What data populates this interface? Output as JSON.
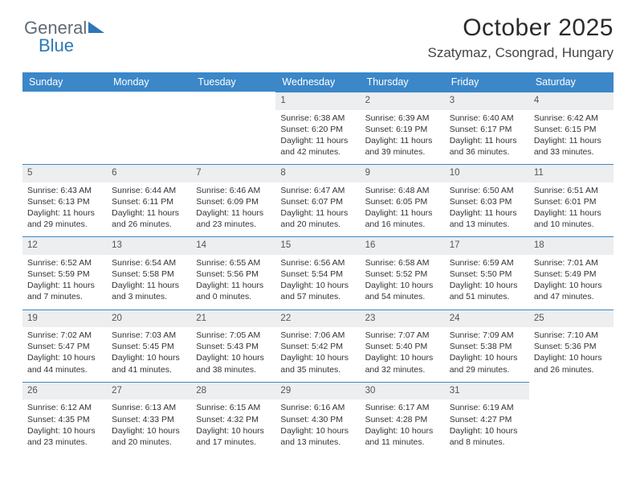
{
  "logo": {
    "part1": "General",
    "part2": "Blue"
  },
  "title": "October 2025",
  "location": "Szatymaz, Csongrad, Hungary",
  "colors": {
    "header_bg": "#3b87c8",
    "header_text": "#ffffff",
    "daynum_bg": "#eceef0",
    "daynum_border": "#3b87c8",
    "body_text": "#333333",
    "page_bg": "#ffffff",
    "logo_gray": "#5f6b76",
    "logo_blue": "#2f77b6"
  },
  "days_of_week": [
    "Sunday",
    "Monday",
    "Tuesday",
    "Wednesday",
    "Thursday",
    "Friday",
    "Saturday"
  ],
  "weeks": [
    [
      null,
      null,
      null,
      {
        "n": "1",
        "sr": "Sunrise: 6:38 AM",
        "ss": "Sunset: 6:20 PM",
        "dl": "Daylight: 11 hours and 42 minutes."
      },
      {
        "n": "2",
        "sr": "Sunrise: 6:39 AM",
        "ss": "Sunset: 6:19 PM",
        "dl": "Daylight: 11 hours and 39 minutes."
      },
      {
        "n": "3",
        "sr": "Sunrise: 6:40 AM",
        "ss": "Sunset: 6:17 PM",
        "dl": "Daylight: 11 hours and 36 minutes."
      },
      {
        "n": "4",
        "sr": "Sunrise: 6:42 AM",
        "ss": "Sunset: 6:15 PM",
        "dl": "Daylight: 11 hours and 33 minutes."
      }
    ],
    [
      {
        "n": "5",
        "sr": "Sunrise: 6:43 AM",
        "ss": "Sunset: 6:13 PM",
        "dl": "Daylight: 11 hours and 29 minutes."
      },
      {
        "n": "6",
        "sr": "Sunrise: 6:44 AM",
        "ss": "Sunset: 6:11 PM",
        "dl": "Daylight: 11 hours and 26 minutes."
      },
      {
        "n": "7",
        "sr": "Sunrise: 6:46 AM",
        "ss": "Sunset: 6:09 PM",
        "dl": "Daylight: 11 hours and 23 minutes."
      },
      {
        "n": "8",
        "sr": "Sunrise: 6:47 AM",
        "ss": "Sunset: 6:07 PM",
        "dl": "Daylight: 11 hours and 20 minutes."
      },
      {
        "n": "9",
        "sr": "Sunrise: 6:48 AM",
        "ss": "Sunset: 6:05 PM",
        "dl": "Daylight: 11 hours and 16 minutes."
      },
      {
        "n": "10",
        "sr": "Sunrise: 6:50 AM",
        "ss": "Sunset: 6:03 PM",
        "dl": "Daylight: 11 hours and 13 minutes."
      },
      {
        "n": "11",
        "sr": "Sunrise: 6:51 AM",
        "ss": "Sunset: 6:01 PM",
        "dl": "Daylight: 11 hours and 10 minutes."
      }
    ],
    [
      {
        "n": "12",
        "sr": "Sunrise: 6:52 AM",
        "ss": "Sunset: 5:59 PM",
        "dl": "Daylight: 11 hours and 7 minutes."
      },
      {
        "n": "13",
        "sr": "Sunrise: 6:54 AM",
        "ss": "Sunset: 5:58 PM",
        "dl": "Daylight: 11 hours and 3 minutes."
      },
      {
        "n": "14",
        "sr": "Sunrise: 6:55 AM",
        "ss": "Sunset: 5:56 PM",
        "dl": "Daylight: 11 hours and 0 minutes."
      },
      {
        "n": "15",
        "sr": "Sunrise: 6:56 AM",
        "ss": "Sunset: 5:54 PM",
        "dl": "Daylight: 10 hours and 57 minutes."
      },
      {
        "n": "16",
        "sr": "Sunrise: 6:58 AM",
        "ss": "Sunset: 5:52 PM",
        "dl": "Daylight: 10 hours and 54 minutes."
      },
      {
        "n": "17",
        "sr": "Sunrise: 6:59 AM",
        "ss": "Sunset: 5:50 PM",
        "dl": "Daylight: 10 hours and 51 minutes."
      },
      {
        "n": "18",
        "sr": "Sunrise: 7:01 AM",
        "ss": "Sunset: 5:49 PM",
        "dl": "Daylight: 10 hours and 47 minutes."
      }
    ],
    [
      {
        "n": "19",
        "sr": "Sunrise: 7:02 AM",
        "ss": "Sunset: 5:47 PM",
        "dl": "Daylight: 10 hours and 44 minutes."
      },
      {
        "n": "20",
        "sr": "Sunrise: 7:03 AM",
        "ss": "Sunset: 5:45 PM",
        "dl": "Daylight: 10 hours and 41 minutes."
      },
      {
        "n": "21",
        "sr": "Sunrise: 7:05 AM",
        "ss": "Sunset: 5:43 PM",
        "dl": "Daylight: 10 hours and 38 minutes."
      },
      {
        "n": "22",
        "sr": "Sunrise: 7:06 AM",
        "ss": "Sunset: 5:42 PM",
        "dl": "Daylight: 10 hours and 35 minutes."
      },
      {
        "n": "23",
        "sr": "Sunrise: 7:07 AM",
        "ss": "Sunset: 5:40 PM",
        "dl": "Daylight: 10 hours and 32 minutes."
      },
      {
        "n": "24",
        "sr": "Sunrise: 7:09 AM",
        "ss": "Sunset: 5:38 PM",
        "dl": "Daylight: 10 hours and 29 minutes."
      },
      {
        "n": "25",
        "sr": "Sunrise: 7:10 AM",
        "ss": "Sunset: 5:36 PM",
        "dl": "Daylight: 10 hours and 26 minutes."
      }
    ],
    [
      {
        "n": "26",
        "sr": "Sunrise: 6:12 AM",
        "ss": "Sunset: 4:35 PM",
        "dl": "Daylight: 10 hours and 23 minutes."
      },
      {
        "n": "27",
        "sr": "Sunrise: 6:13 AM",
        "ss": "Sunset: 4:33 PM",
        "dl": "Daylight: 10 hours and 20 minutes."
      },
      {
        "n": "28",
        "sr": "Sunrise: 6:15 AM",
        "ss": "Sunset: 4:32 PM",
        "dl": "Daylight: 10 hours and 17 minutes."
      },
      {
        "n": "29",
        "sr": "Sunrise: 6:16 AM",
        "ss": "Sunset: 4:30 PM",
        "dl": "Daylight: 10 hours and 13 minutes."
      },
      {
        "n": "30",
        "sr": "Sunrise: 6:17 AM",
        "ss": "Sunset: 4:28 PM",
        "dl": "Daylight: 10 hours and 11 minutes."
      },
      {
        "n": "31",
        "sr": "Sunrise: 6:19 AM",
        "ss": "Sunset: 4:27 PM",
        "dl": "Daylight: 10 hours and 8 minutes."
      },
      null
    ]
  ]
}
